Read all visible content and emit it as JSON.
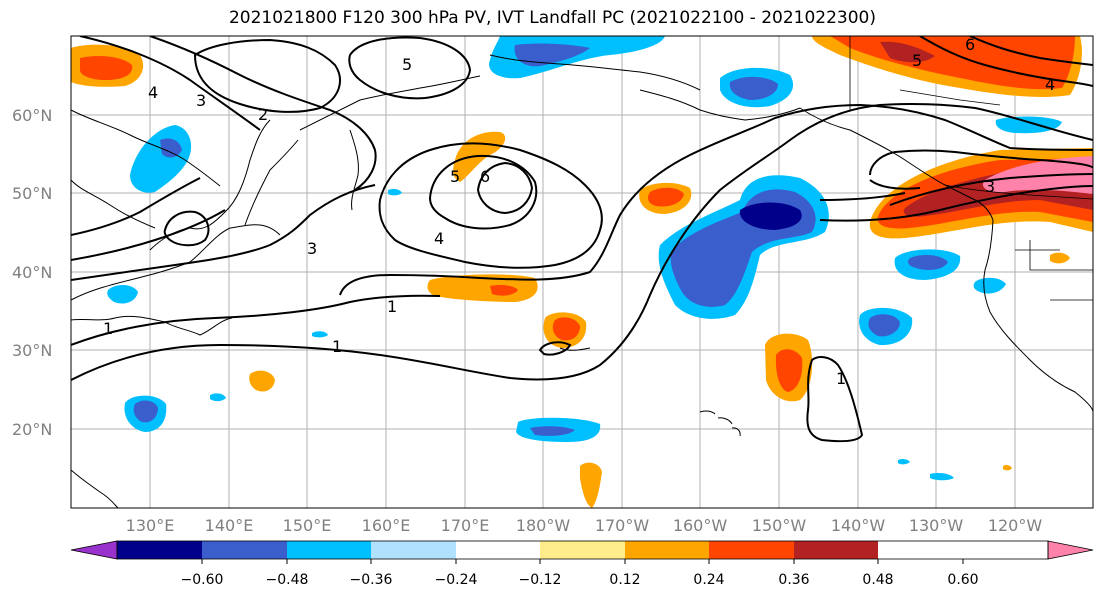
{
  "title": "2021021800 F120 300 hPa PV, IVT Landfall PC (2021022100 - 2021022300)",
  "map": {
    "lat_labels": [
      "60°N",
      "50°N",
      "40°N",
      "30°N",
      "20°N"
    ],
    "lon_labels": [
      "130°E",
      "140°E",
      "150°E",
      "160°E",
      "170°E",
      "180°W",
      "170°W",
      "160°W",
      "150°W",
      "140°W",
      "130°W",
      "120°W"
    ],
    "contour_labels": [
      "1",
      "1",
      "1",
      "1",
      "2",
      "3",
      "3",
      "3",
      "4",
      "4",
      "4",
      "5",
      "5",
      "5",
      "6",
      "6"
    ]
  },
  "colorbar": {
    "tick_labels": [
      "−0.60",
      "−0.48",
      "−0.36",
      "−0.24",
      "−0.12",
      "0.12",
      "0.24",
      "0.36",
      "0.48",
      "0.60"
    ],
    "colors": [
      "#9932cc",
      "#00008b",
      "#3a5fcd",
      "#00bfff",
      "#b0e2ff",
      "#ffffff",
      "#ffec8b",
      "#ffa500",
      "#ff4500",
      "#b22222",
      "#ff82ab"
    ]
  }
}
